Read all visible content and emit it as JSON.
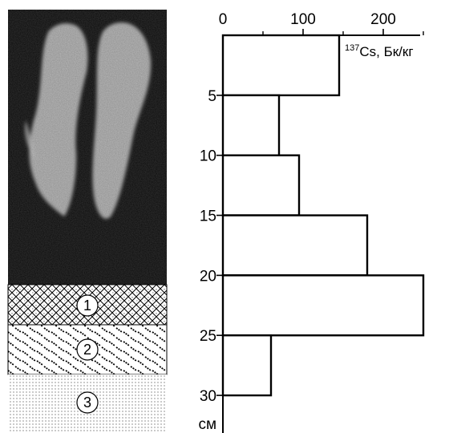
{
  "chart_data": {
    "type": "bar",
    "orientation": "horizontal-step-profile",
    "title": "",
    "x_axis": {
      "position": "top",
      "range": [
        0,
        250
      ],
      "ticks": [
        0,
        100,
        200
      ],
      "label_prefix": "137",
      "label_main": "Cs, Бк/кг"
    },
    "y_axis": {
      "direction": "downward",
      "range": [
        0,
        33
      ],
      "ticks": [
        5,
        10,
        15,
        20,
        25,
        30
      ],
      "unit": "см"
    },
    "intervals": [
      {
        "depth_from": 0,
        "depth_to": 5,
        "value": 145
      },
      {
        "depth_from": 5,
        "depth_to": 10,
        "value": 70
      },
      {
        "depth_from": 10,
        "depth_to": 15,
        "value": 95
      },
      {
        "depth_from": 15,
        "depth_to": 20,
        "value": 180
      },
      {
        "depth_from": 20,
        "depth_to": 25,
        "value": 250
      },
      {
        "depth_from": 25,
        "depth_to": 30,
        "value": 60
      }
    ],
    "layers": [
      {
        "number": "1",
        "pattern": "crosshatch"
      },
      {
        "number": "2",
        "pattern": "diagonal-dash"
      },
      {
        "number": "3",
        "pattern": "dots"
      }
    ],
    "colors": {
      "ink": "#000000",
      "photo_background": "#0a0a0a",
      "photo_highlight": "#e8e8e8"
    }
  }
}
